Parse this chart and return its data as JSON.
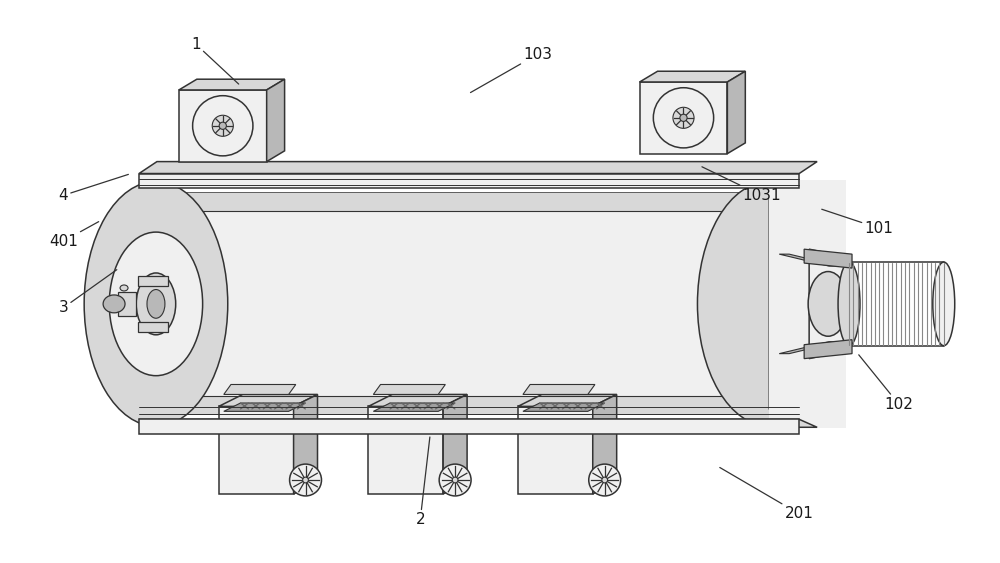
{
  "background_color": "#ffffff",
  "line_color": "#333333",
  "fill_light": "#f0f0f0",
  "fill_mid": "#d8d8d8",
  "fill_dark": "#b8b8b8",
  "fill_darker": "#a0a0a0",
  "figsize": [
    10,
    5.63
  ],
  "dpi": 100,
  "labels": [
    [
      "1",
      195,
      520,
      240,
      478
    ],
    [
      "2",
      420,
      42,
      430,
      128
    ],
    [
      "3",
      62,
      255,
      118,
      295
    ],
    [
      "4",
      62,
      368,
      130,
      390
    ],
    [
      "101",
      880,
      335,
      820,
      355
    ],
    [
      "102",
      900,
      158,
      858,
      210
    ],
    [
      "103",
      538,
      510,
      468,
      470
    ],
    [
      "1031",
      762,
      368,
      700,
      398
    ],
    [
      "201",
      800,
      48,
      718,
      96
    ],
    [
      "401",
      62,
      322,
      100,
      343
    ]
  ]
}
